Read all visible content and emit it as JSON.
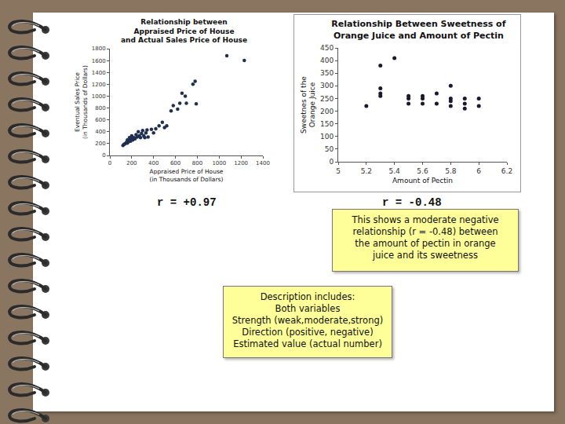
{
  "chart_data": [
    {
      "type": "scatter",
      "title": "Relationship between\nAppraised Price of House\nand Actual Sales Price of House",
      "x_label": "Appraised Price of House\n(in Thousands of Dollars)",
      "y_label": "Eventual Sales Price\n(in Thousands of Dollars)",
      "x": [
        120,
        130,
        140,
        150,
        160,
        160,
        170,
        180,
        180,
        190,
        200,
        200,
        210,
        220,
        230,
        240,
        250,
        260,
        270,
        280,
        290,
        300,
        310,
        320,
        330,
        340,
        350,
        380,
        400,
        420,
        450,
        480,
        500,
        520,
        560,
        580,
        620,
        640,
        660,
        690,
        700,
        760,
        780,
        790,
        1070,
        1230
      ],
      "values": [
        170,
        190,
        200,
        220,
        210,
        260,
        230,
        250,
        300,
        240,
        280,
        330,
        260,
        300,
        280,
        350,
        310,
        400,
        330,
        300,
        370,
        420,
        330,
        300,
        380,
        430,
        310,
        440,
        380,
        450,
        500,
        560,
        470,
        500,
        750,
        840,
        780,
        880,
        1050,
        1000,
        880,
        1200,
        1250,
        870,
        1680,
        1600
      ],
      "color": "#1f2f4f",
      "marker": "circle",
      "xlim": [
        0,
        1400
      ],
      "xticks": [
        0,
        200,
        400,
        600,
        800,
        1000,
        1200,
        1400
      ],
      "ylim": [
        0,
        1800
      ],
      "yticks": [
        0,
        200,
        400,
        600,
        800,
        1000,
        1200,
        1400,
        1600,
        1800
      ],
      "grid": false,
      "annotation": "r = +0.97"
    },
    {
      "type": "scatter",
      "title": "Relationship Between Sweetness of\nOrange Juice and Amount of Pectin",
      "x_label": "Amount of Pectin",
      "y_label": "Sweetnes of the\nOrange Juice",
      "x": [
        5.2,
        5.3,
        5.3,
        5.3,
        5.3,
        5.4,
        5.5,
        5.5,
        5.5,
        5.6,
        5.6,
        5.6,
        5.7,
        5.7,
        5.8,
        5.8,
        5.8,
        5.8,
        5.9,
        5.9,
        5.9,
        6.0,
        6.0
      ],
      "values": [
        220,
        380,
        290,
        270,
        260,
        410,
        260,
        250,
        230,
        260,
        250,
        230,
        270,
        230,
        300,
        250,
        240,
        220,
        250,
        230,
        210,
        250,
        220
      ],
      "color": "#1a1a2e",
      "marker": "circle",
      "xlim": [
        5,
        6.2
      ],
      "xticks": [
        5,
        5.2,
        5.4,
        5.6,
        5.8,
        6,
        6.2
      ],
      "ylim": [
        0,
        450
      ],
      "yticks": [
        0,
        50,
        100,
        150,
        200,
        250,
        300,
        350,
        400,
        450
      ],
      "grid": false,
      "annotation": "r = -0.48"
    }
  ],
  "notes": [
    {
      "lines": [
        "This shows a moderate negative",
        "relationship (r = -0.48) between",
        "the amount of pectin in orange",
        "juice and its sweetness"
      ]
    },
    {
      "lines": [
        "Description includes:",
        "Both variables",
        "Strength (weak,moderate,strong)",
        "Direction (positive, negative)",
        "Estimated value (actual number)"
      ]
    }
  ]
}
